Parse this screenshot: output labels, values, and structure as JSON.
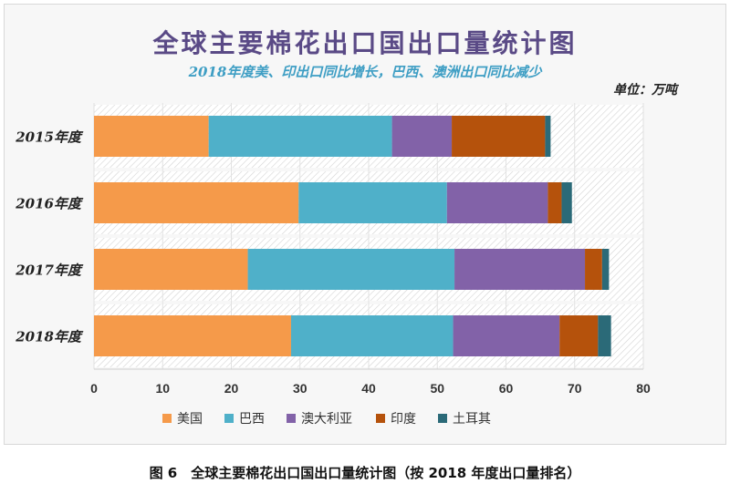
{
  "header": {
    "title": "全球主要棉花出口国出口量统计图",
    "subtitle": "2018年度美、印出口同比增长，巴西、澳洲出口同比减少",
    "unit": "单位：万吨"
  },
  "caption": "图 6　全球主要棉花出口国出口量统计图（按 2018 年度出口量排名）",
  "chart_data": {
    "type": "bar",
    "orientation": "horizontal",
    "stacked": true,
    "title": "全球主要棉花出口国出口量统计图",
    "subtitle": "2018年度美、印出口同比增长，巴西、澳洲出口同比减少",
    "unit": "单位：万吨",
    "categories": [
      "2015年度",
      "2016年度",
      "2017年度",
      "2018年度"
    ],
    "series": [
      {
        "name": "美国",
        "color": "#f59a4a",
        "values": [
          16.7,
          29.8,
          22.4,
          28.7
        ]
      },
      {
        "name": "巴西",
        "color": "#4fb0c9",
        "values": [
          26.7,
          21.6,
          30.1,
          23.6
        ]
      },
      {
        "name": "澳大利亚",
        "color": "#8262a8",
        "values": [
          8.7,
          14.7,
          19.0,
          15.5
        ]
      },
      {
        "name": "印度",
        "color": "#b5520c",
        "values": [
          13.6,
          2.0,
          2.5,
          5.6
        ]
      },
      {
        "name": "土耳其",
        "color": "#2b6a78",
        "values": [
          0.8,
          1.5,
          1.0,
          1.9
        ]
      }
    ],
    "xlim": [
      0,
      80
    ],
    "xticks": [
      0,
      10,
      20,
      30,
      40,
      50,
      60,
      70,
      80
    ],
    "grid": true,
    "legend_position": "bottom"
  }
}
